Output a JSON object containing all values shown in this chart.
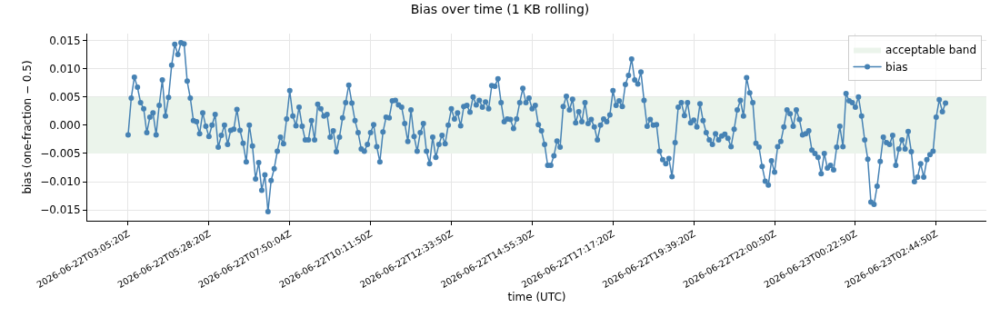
{
  "chart_data": {
    "type": "line",
    "title": "Bias over time (1 KB rolling)",
    "xlabel": "time (UTC)",
    "ylabel": "bias (one-fraction − 0.5)",
    "categories": [
      "2026-06-22T03:05:20Z",
      null,
      null,
      null,
      null,
      null,
      null,
      null,
      null,
      null,
      null,
      null,
      null,
      null,
      null,
      null,
      null,
      null,
      null,
      null,
      null,
      null,
      null,
      null,
      null,
      null,
      "2026-06-22T05:28:20Z",
      null,
      null,
      null,
      null,
      null,
      null,
      null,
      null,
      null,
      null,
      null,
      null,
      null,
      null,
      null,
      null,
      null,
      null,
      null,
      null,
      null,
      null,
      null,
      null,
      null,
      "2026-06-22T07:50:04Z",
      null,
      null,
      null,
      null,
      null,
      null,
      null,
      null,
      null,
      null,
      null,
      null,
      null,
      null,
      null,
      null,
      null,
      null,
      null,
      null,
      null,
      null,
      null,
      null,
      null,
      "2026-06-22T10:11:50Z",
      null,
      null,
      null,
      null,
      null,
      null,
      null,
      null,
      null,
      null,
      null,
      null,
      null,
      null,
      null,
      null,
      null,
      null,
      null,
      null,
      null,
      null,
      null,
      null,
      null,
      "2026-06-22T12:33:50Z",
      null,
      null,
      null,
      null,
      null,
      null,
      null,
      null,
      null,
      null,
      null,
      null,
      null,
      null,
      null,
      null,
      null,
      null,
      null,
      null,
      null,
      null,
      null,
      null,
      null,
      "2026-06-22T14:55:30Z",
      null,
      null,
      null,
      null,
      null,
      null,
      null,
      null,
      null,
      null,
      null,
      null,
      null,
      null,
      null,
      null,
      null,
      null,
      null,
      null,
      null,
      null,
      null,
      null,
      null,
      "2026-06-22T17:17:20Z",
      null,
      null,
      null,
      null,
      null,
      null,
      null,
      null,
      null,
      null,
      null,
      null,
      null,
      null,
      null,
      null,
      null,
      null,
      null,
      null,
      null,
      null,
      null,
      null,
      null,
      "2026-06-22T19:39:20Z",
      null,
      null,
      null,
      null,
      null,
      null,
      null,
      null,
      null,
      null,
      null,
      null,
      null,
      null,
      null,
      null,
      null,
      null,
      null,
      null,
      null,
      null,
      null,
      null,
      null,
      "2026-06-22T22:00:50Z",
      null,
      null,
      null,
      null,
      null,
      null,
      null,
      null,
      null,
      null,
      null,
      null,
      null,
      null,
      null,
      null,
      null,
      null,
      null,
      null,
      null,
      null,
      null,
      null,
      null,
      "2026-06-23T00:22:50Z",
      null,
      null,
      null,
      null,
      null,
      null,
      null,
      null,
      null,
      null,
      null,
      null,
      null,
      null,
      null,
      null,
      null,
      null,
      null,
      null,
      null,
      null,
      null,
      null,
      null,
      "2026-06-23T02:44:50Z",
      null,
      null,
      null
    ],
    "series": [
      {
        "name": "bias",
        "color": "#4682b4",
        "values": [
          -0.0017,
          0.0048,
          0.0085,
          0.0067,
          0.004,
          0.0029,
          -0.0013,
          0.0014,
          0.0022,
          -0.0017,
          0.0035,
          0.008,
          0.0016,
          0.0049,
          0.0106,
          0.0143,
          0.0125,
          0.0146,
          0.0144,
          0.0078,
          0.0048,
          0.0008,
          0.0006,
          -0.0015,
          0.0022,
          -0.0002,
          -0.002,
          0.0,
          0.0019,
          -0.0039,
          -0.0018,
          0.0,
          -0.0034,
          -0.0009,
          -0.0007,
          0.0028,
          -0.0009,
          -0.0032,
          -0.0065,
          0.0,
          -0.0037,
          -0.0095,
          -0.0066,
          -0.0115,
          -0.0088,
          -0.0153,
          -0.0098,
          -0.0077,
          -0.0046,
          -0.0021,
          -0.0033,
          0.0011,
          0.0061,
          0.0016,
          -0.0001,
          0.0032,
          -0.0002,
          -0.0026,
          -0.0026,
          0.0008,
          -0.0026,
          0.0037,
          0.0029,
          0.0016,
          0.0019,
          -0.0021,
          -0.001,
          -0.0047,
          -0.0021,
          0.0013,
          0.004,
          0.0071,
          0.0039,
          0.0008,
          -0.0013,
          -0.0042,
          -0.0046,
          -0.0034,
          -0.0013,
          0.0001,
          -0.0038,
          -0.0065,
          -0.0012,
          0.0014,
          0.0013,
          0.0043,
          0.0044,
          0.0036,
          0.0032,
          0.0003,
          -0.0029,
          0.0027,
          -0.002,
          -0.0046,
          -0.0013,
          0.0003,
          -0.0046,
          -0.0068,
          -0.0021,
          -0.0057,
          -0.0034,
          -0.0018,
          -0.0033,
          0.0,
          0.0029,
          0.0011,
          0.0022,
          -0.0001,
          0.0033,
          0.0035,
          0.0023,
          0.005,
          0.0036,
          0.0044,
          0.0032,
          0.0041,
          0.0029,
          0.007,
          0.0069,
          0.0082,
          0.004,
          0.0006,
          0.0011,
          0.001,
          -0.0006,
          0.0011,
          0.004,
          0.0065,
          0.004,
          0.0048,
          0.0029,
          0.0035,
          0.0001,
          -0.001,
          -0.0034,
          -0.0071,
          -0.0071,
          -0.0054,
          -0.0028,
          -0.0039,
          0.0033,
          0.0051,
          0.0027,
          0.0046,
          0.0004,
          0.0024,
          0.0006,
          0.004,
          0.0003,
          0.001,
          -0.0003,
          -0.0026,
          0.0,
          0.0011,
          0.0006,
          0.0018,
          0.0061,
          0.0035,
          0.0043,
          0.0033,
          0.0072,
          0.0088,
          0.0117,
          0.008,
          0.0073,
          0.0094,
          0.0044,
          -0.0002,
          0.001,
          0.0,
          0.0001,
          -0.0046,
          -0.0061,
          -0.0068,
          -0.0059,
          -0.0091,
          -0.0031,
          0.0032,
          0.004,
          0.0017,
          0.004,
          0.0004,
          0.0009,
          -0.0003,
          0.0038,
          0.0008,
          -0.0013,
          -0.0026,
          -0.0034,
          -0.0015,
          -0.0026,
          -0.0019,
          -0.0016,
          -0.0023,
          -0.0038,
          -0.0007,
          0.0027,
          0.0044,
          0.0016,
          0.0084,
          0.0057,
          0.004,
          -0.0032,
          -0.0039,
          -0.0073,
          -0.0099,
          -0.0106,
          -0.0063,
          -0.0083,
          -0.0038,
          -0.0029,
          -0.0003,
          0.0027,
          0.002,
          -0.0002,
          0.0027,
          0.001,
          -0.0017,
          -0.0015,
          -0.001,
          -0.0044,
          -0.005,
          -0.0057,
          -0.0086,
          -0.005,
          -0.0076,
          -0.0071,
          -0.0079,
          -0.0039,
          -0.0002,
          -0.0038,
          0.0056,
          0.0043,
          0.004,
          0.0032,
          0.005,
          0.0016,
          -0.0026,
          -0.006,
          -0.0136,
          -0.014,
          -0.0108,
          -0.0064,
          -0.0021,
          -0.0031,
          -0.0034,
          -0.0018,
          -0.0071,
          -0.0042,
          -0.0026,
          -0.0042,
          -0.0011,
          -0.0047,
          -0.01,
          -0.0092,
          -0.0068,
          -0.0092,
          -0.0061,
          -0.0052,
          -0.0046,
          0.0014,
          0.0045,
          0.0024,
          0.0039
        ]
      }
    ],
    "ylim": [
      -0.0169,
      0.0162
    ],
    "yticks": [
      {
        "value": -0.015,
        "label": "−0.015"
      },
      {
        "value": -0.01,
        "label": "−0.010"
      },
      {
        "value": -0.005,
        "label": "−0.005"
      },
      {
        "value": 0,
        "label": "0.000"
      },
      {
        "value": 0.005,
        "label": "0.005"
      },
      {
        "value": 0.01,
        "label": "0.010"
      },
      {
        "value": 0.015,
        "label": "0.015"
      }
    ],
    "bands": [
      {
        "axis": "y",
        "from": -0.005,
        "to": 0.005,
        "label": "acceptable band",
        "color": "#ebf4eb"
      }
    ],
    "grid": true,
    "legend": "top right",
    "marker": "circle",
    "line_style": "solid"
  }
}
